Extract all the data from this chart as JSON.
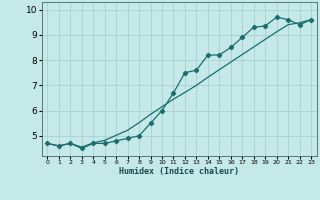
{
  "xlabel": "Humidex (Indice chaleur)",
  "background_color": "#c5e8e8",
  "grid_color": "#aacfcf",
  "line_color": "#1a6e6e",
  "xlim": [
    -0.5,
    23.5
  ],
  "ylim": [
    4.2,
    10.3
  ],
  "x_ticks": [
    0,
    1,
    2,
    3,
    4,
    5,
    6,
    7,
    8,
    9,
    10,
    11,
    12,
    13,
    14,
    15,
    16,
    17,
    18,
    19,
    20,
    21,
    22,
    23
  ],
  "y_ticks": [
    5,
    6,
    7,
    8,
    9,
    10
  ],
  "line1_x": [
    0,
    1,
    2,
    3,
    4,
    5,
    6,
    7,
    8,
    9,
    10,
    11,
    12,
    13,
    14,
    15,
    16,
    17,
    18,
    19,
    20,
    21,
    22,
    23
  ],
  "line1_y": [
    4.7,
    4.6,
    4.7,
    4.5,
    4.7,
    4.7,
    4.8,
    4.9,
    5.0,
    5.5,
    6.0,
    6.7,
    7.5,
    7.6,
    8.2,
    8.2,
    8.5,
    8.9,
    9.3,
    9.35,
    9.7,
    9.6,
    9.4,
    9.6
  ],
  "line2_x": [
    0,
    1,
    2,
    3,
    4,
    5,
    6,
    7,
    8,
    9,
    10,
    11,
    12,
    13,
    14,
    15,
    16,
    17,
    18,
    19,
    20,
    21,
    22,
    23
  ],
  "line2_y": [
    4.7,
    4.6,
    4.7,
    4.55,
    4.72,
    4.82,
    5.02,
    5.22,
    5.52,
    5.85,
    6.15,
    6.45,
    6.72,
    7.0,
    7.32,
    7.62,
    7.92,
    8.22,
    8.52,
    8.82,
    9.12,
    9.4,
    9.48,
    9.6
  ]
}
